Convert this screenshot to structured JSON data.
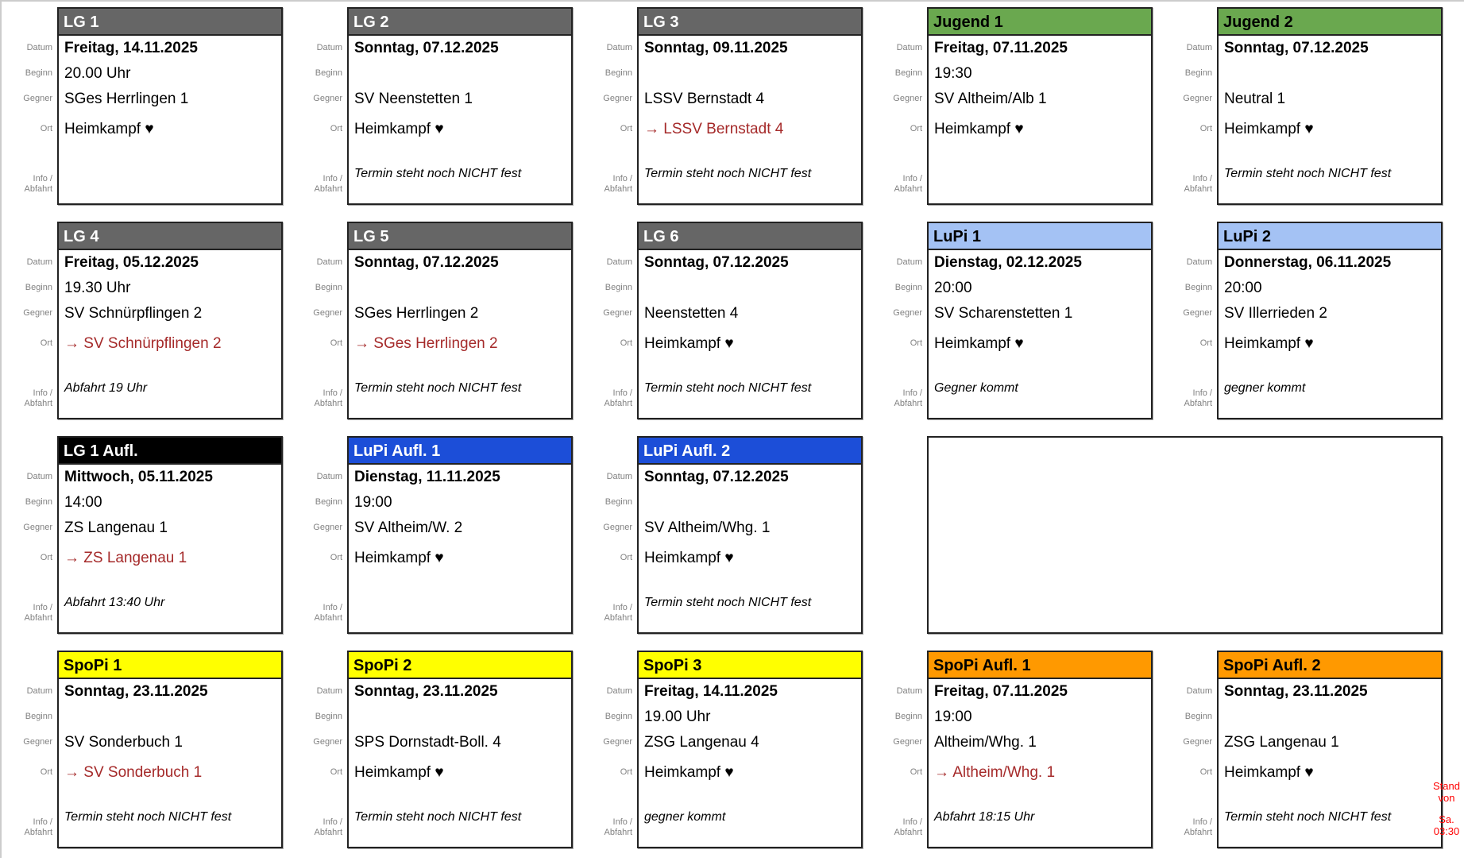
{
  "labels": {
    "datum": "Datum",
    "beginn": "Beginn",
    "gegner": "Gegner",
    "ort": "Ort",
    "info_line1": "Info /",
    "info_line2": "Abfahrt"
  },
  "colors": {
    "away_link": "#a52a2a",
    "note_red": "#ff0000",
    "label_gray": "#828282",
    "card_border": "#222222"
  },
  "themes": {
    "lg": {
      "bg": "#666666",
      "fg": "#ffffff"
    },
    "jugend": {
      "bg": "#6aa84f",
      "fg": "#000000"
    },
    "lupi": {
      "bg": "#a4c2f4",
      "fg": "#000000"
    },
    "lg-aufl": {
      "bg": "#000000",
      "fg": "#ffffff"
    },
    "lupi-aufl": {
      "bg": "#1c4ed8",
      "fg": "#ffffff"
    },
    "spopi": {
      "bg": "#ffff00",
      "fg": "#000000"
    },
    "spopi-aufl": {
      "bg": "#ff9900",
      "fg": "#000000"
    }
  },
  "note": {
    "lines": [
      "Stand",
      "von",
      "",
      "Sa.",
      "03:30"
    ]
  },
  "rows": [
    [
      {
        "title": "LG 1",
        "theme": "lg",
        "datum": "Freitag, 14.11.2025",
        "beginn": "20.00 Uhr",
        "gegner": "SGes Herrlingen 1",
        "ort": "Heimkampf ♥",
        "ort_type": "home",
        "info": ""
      },
      {
        "title": "LG 2",
        "theme": "lg",
        "datum": "Sonntag, 07.12.2025",
        "beginn": "",
        "gegner": "SV Neenstetten 1",
        "ort": "Heimkampf ♥",
        "ort_type": "home",
        "info": "Termin steht noch NICHT fest"
      },
      {
        "title": "LG 3",
        "theme": "lg",
        "datum": "Sonntag, 09.11.2025",
        "beginn": "",
        "gegner": "LSSV Bernstadt 4",
        "ort": "→ LSSV Bernstadt 4",
        "ort_type": "away",
        "info": "Termin steht noch NICHT fest"
      },
      {
        "title": "Jugend 1",
        "theme": "jugend",
        "datum": "Freitag, 07.11.2025",
        "beginn": "19:30",
        "gegner": "SV Altheim/Alb 1",
        "ort": "Heimkampf ♥",
        "ort_type": "home",
        "info": ""
      },
      {
        "title": "Jugend 2",
        "theme": "jugend",
        "datum": "Sonntag, 07.12.2025",
        "beginn": "",
        "gegner": "Neutral 1",
        "ort": "Heimkampf ♥",
        "ort_type": "home",
        "info": "Termin steht noch NICHT fest"
      }
    ],
    [
      {
        "title": "LG 4",
        "theme": "lg",
        "datum": "Freitag, 05.12.2025",
        "beginn": "19.30 Uhr",
        "gegner": "SV Schnürpflingen 2",
        "ort": "→ SV Schnürpflingen 2",
        "ort_type": "away",
        "info": "Abfahrt 19 Uhr"
      },
      {
        "title": "LG 5",
        "theme": "lg",
        "datum": "Sonntag, 07.12.2025",
        "beginn": "",
        "gegner": "SGes Herrlingen 2",
        "ort": "→ SGes Herrlingen 2",
        "ort_type": "away",
        "info": "Termin steht noch NICHT fest"
      },
      {
        "title": "LG 6",
        "theme": "lg",
        "datum": "Sonntag, 07.12.2025",
        "beginn": "",
        "gegner": "Neenstetten 4",
        "ort": "Heimkampf ♥",
        "ort_type": "home",
        "info": "Termin steht noch NICHT fest"
      },
      {
        "title": "LuPi 1",
        "theme": "lupi",
        "datum": "Dienstag, 02.12.2025",
        "beginn": "20:00",
        "gegner": "SV Scharenstetten 1",
        "ort": "Heimkampf ♥",
        "ort_type": "home",
        "info": "Gegner kommt"
      },
      {
        "title": "LuPi 2",
        "theme": "lupi",
        "datum": "Donnerstag, 06.11.2025",
        "beginn": "20:00",
        "gegner": "SV Illerrieden 2",
        "ort": "Heimkampf ♥",
        "ort_type": "home",
        "info": "gegner kommt"
      }
    ],
    [
      {
        "title": "LG 1 Aufl.",
        "theme": "lg-aufl",
        "datum": "Mittwoch, 05.11.2025",
        "beginn": "14:00",
        "gegner": "ZS Langenau 1",
        "ort": "→ ZS Langenau 1",
        "ort_type": "away",
        "info": "Abfahrt 13:40 Uhr"
      },
      {
        "title": "LuPi Aufl. 1",
        "theme": "lupi-aufl",
        "datum": "Dienstag, 11.11.2025",
        "beginn": "19:00",
        "gegner": "SV Altheim/W. 2",
        "ort": "Heimkampf ♥",
        "ort_type": "home",
        "info": ""
      },
      {
        "title": "LuPi Aufl. 2",
        "theme": "lupi-aufl",
        "datum": "Sonntag, 07.12.2025",
        "beginn": "",
        "gegner": "SV Altheim/Whg. 1",
        "ort": "Heimkampf ♥",
        "ort_type": "home",
        "info": "Termin steht noch NICHT fest"
      },
      {
        "kind": "empty-wide"
      }
    ],
    [
      {
        "title": "SpoPi 1",
        "theme": "spopi",
        "datum": "Sonntag, 23.11.2025",
        "beginn": "",
        "gegner": "SV Sonderbuch 1",
        "ort": "→ SV Sonderbuch 1",
        "ort_type": "away",
        "info": "Termin steht noch NICHT fest"
      },
      {
        "title": "SpoPi 2",
        "theme": "spopi",
        "datum": "Sonntag, 23.11.2025",
        "beginn": "",
        "gegner": "SPS Dornstadt-Boll. 4",
        "ort": "Heimkampf ♥",
        "ort_type": "home",
        "info": "Termin steht noch NICHT fest"
      },
      {
        "title": "SpoPi 3",
        "theme": "spopi",
        "datum": "Freitag, 14.11.2025",
        "beginn": "19.00 Uhr",
        "gegner": "ZSG Langenau 4",
        "ort": "Heimkampf ♥",
        "ort_type": "home",
        "info": "gegner kommt"
      },
      {
        "title": "SpoPi Aufl. 1",
        "theme": "spopi-aufl",
        "datum": "Freitag, 07.11.2025",
        "beginn": "19:00",
        "gegner": "Altheim/Whg. 1",
        "ort": "→ Altheim/Whg. 1",
        "ort_type": "away",
        "info": "Abfahrt 18:15 Uhr"
      },
      {
        "title": "SpoPi Aufl. 2",
        "theme": "spopi-aufl",
        "datum": "Sonntag, 23.11.2025",
        "beginn": "",
        "gegner": "ZSG Langenau 1",
        "ort": "Heimkampf ♥",
        "ort_type": "home",
        "info": "Termin steht noch NICHT fest"
      }
    ]
  ]
}
